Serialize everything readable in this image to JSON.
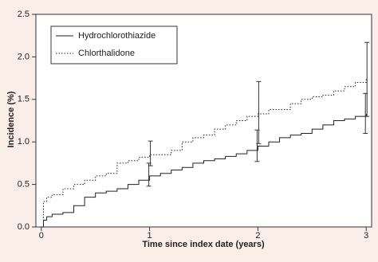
{
  "chart_data": {
    "type": "line",
    "step": "post",
    "x_label": "Time since index date (years)",
    "y_label": "Incidence (%)",
    "xlim": [
      -0.05,
      3.05
    ],
    "ylim": [
      0,
      2.5
    ],
    "xticks": [
      0,
      1,
      2,
      3
    ],
    "yticks": [
      {
        "value": 0,
        "label": "0.0"
      },
      0.5,
      {
        "value": 1,
        "label": "1.0"
      },
      1.5,
      {
        "value": 2,
        "label": "2.0"
      },
      2.5
    ],
    "legend": "upper left",
    "x": [
      0,
      0.02,
      0.05,
      0.1,
      0.2,
      0.3,
      0.4,
      0.5,
      0.6,
      0.7,
      0.8,
      0.9,
      1.0,
      1.1,
      1.2,
      1.3,
      1.4,
      1.5,
      1.6,
      1.7,
      1.8,
      1.9,
      2.0,
      2.1,
      2.2,
      2.3,
      2.4,
      2.5,
      2.6,
      2.7,
      2.8,
      2.9,
      3.0
    ],
    "series": [
      {
        "name": "Hydrochlorothiazide",
        "color": "#222222",
        "dash": "solid",
        "values": [
          0,
          0.08,
          0.12,
          0.15,
          0.17,
          0.25,
          0.35,
          0.4,
          0.42,
          0.45,
          0.5,
          0.55,
          0.6,
          0.63,
          0.67,
          0.7,
          0.75,
          0.78,
          0.8,
          0.83,
          0.86,
          0.9,
          0.95,
          1.0,
          1.05,
          1.08,
          1.1,
          1.15,
          1.2,
          1.25,
          1.27,
          1.3,
          1.33
        ],
        "error_x": [
          1,
          2,
          3
        ],
        "error_values": [
          0.6,
          0.95,
          1.33
        ],
        "error_low": [
          0.48,
          0.77,
          1.1
        ],
        "error_high": [
          0.75,
          1.14,
          1.57
        ]
      },
      {
        "name": "Chlorthalidone",
        "color": "#222222",
        "dash": "dotted",
        "values": [
          0,
          0.3,
          0.35,
          0.38,
          0.45,
          0.5,
          0.55,
          0.6,
          0.63,
          0.75,
          0.78,
          0.82,
          0.85,
          0.85,
          0.9,
          1.0,
          1.05,
          1.08,
          1.15,
          1.2,
          1.25,
          1.3,
          1.33,
          1.38,
          1.38,
          1.45,
          1.5,
          1.53,
          1.55,
          1.6,
          1.65,
          1.7,
          1.75
        ],
        "error_x": [
          1,
          2,
          3
        ],
        "error_values": [
          0.85,
          1.33,
          1.75
        ],
        "error_low": [
          0.72,
          0.98,
          1.3
        ],
        "error_high": [
          1.01,
          1.71,
          2.17
        ]
      }
    ]
  }
}
